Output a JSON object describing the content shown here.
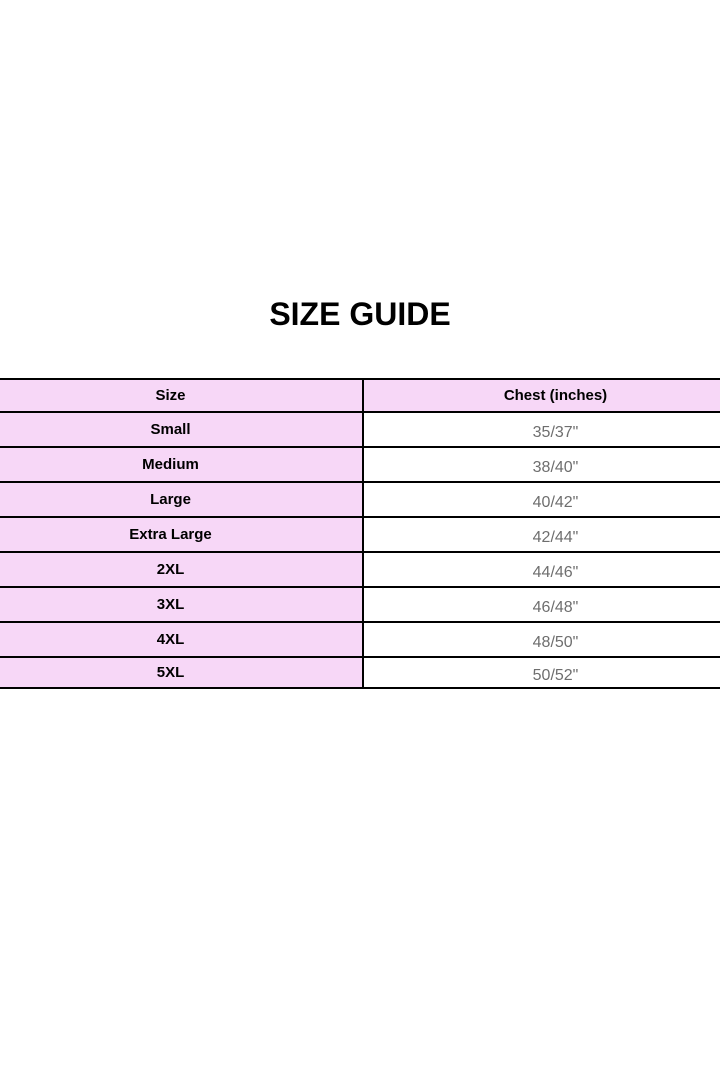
{
  "title": "SIZE GUIDE",
  "table": {
    "columns": [
      {
        "label": "Size"
      },
      {
        "label": "Chest (inches)"
      }
    ],
    "rows": [
      {
        "size": "Small",
        "chest": "35/37\""
      },
      {
        "size": "Medium",
        "chest": "38/40\""
      },
      {
        "size": "Large",
        "chest": "40/42\""
      },
      {
        "size": "Extra Large",
        "chest": "42/44\""
      },
      {
        "size": "2XL",
        "chest": "44/46\""
      },
      {
        "size": "3XL",
        "chest": "46/48\""
      },
      {
        "size": "4XL",
        "chest": "48/50\""
      },
      {
        "size": "5XL",
        "chest": "50/52\""
      }
    ],
    "colors": {
      "cell_pink": "#f7d7f7",
      "cell_white": "#ffffff",
      "border": "#000000",
      "header_text": "#000000",
      "size_text": "#000000",
      "chest_text": "#6e6e6e"
    }
  }
}
